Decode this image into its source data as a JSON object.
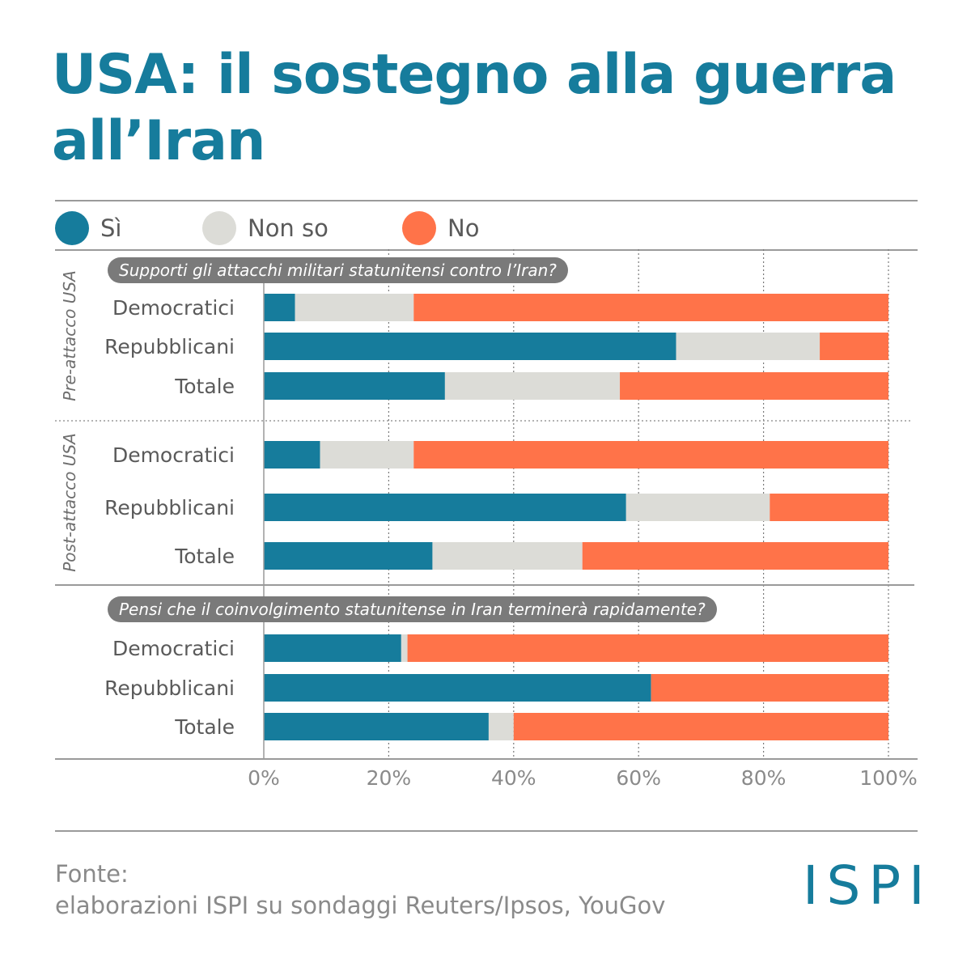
{
  "title": "USA: il sostegno alla guerra all’Iran",
  "legend": [
    {
      "label": "Sì",
      "color": "#167c9c"
    },
    {
      "label": "Non so",
      "color": "#dcdcd7"
    },
    {
      "label": "No",
      "color": "#ff7349"
    }
  ],
  "sections": {
    "pre": "Pre-attacco USA",
    "post": "Post-attacco USA"
  },
  "questions": {
    "q1": "Supporti gli attacchi militari statunitensi contro l’Iran?",
    "q2": "Pensi che il coinvolgimento statunitense in Iran terminerà  rapidamente?"
  },
  "source": {
    "title": "Fonte:",
    "text": "elaborazioni ISPI su sondaggi Reuters/Ipsos, YouGov"
  },
  "logo": "ISPI",
  "chart_data": {
    "type": "bar",
    "orientation": "horizontal",
    "stacked": true,
    "xlim": [
      0,
      100
    ],
    "xticks": [
      "0%",
      "20%",
      "40%",
      "60%",
      "80%",
      "100%"
    ],
    "grid": "vertical dotted",
    "legend_position": "top",
    "groups": [
      {
        "question": "Supporti gli attacchi militari statunitensi contro l’Iran?",
        "section": "Pre-attacco USA",
        "rows": [
          {
            "category": "Democratici",
            "values": [
              5,
              19,
              76
            ]
          },
          {
            "category": "Repubblicani",
            "values": [
              66,
              23,
              11
            ]
          },
          {
            "category": "Totale",
            "values": [
              29,
              28,
              43
            ]
          }
        ]
      },
      {
        "question": "Supporti gli attacchi militari statunitensi contro l’Iran?",
        "section": "Post-attacco USA",
        "rows": [
          {
            "category": "Democratici",
            "values": [
              9,
              15,
              76
            ]
          },
          {
            "category": "Repubblicani",
            "values": [
              58,
              23,
              19
            ]
          },
          {
            "category": "Totale",
            "values": [
              27,
              24,
              49
            ]
          }
        ]
      },
      {
        "question": "Pensi che il coinvolgimento statunitense in Iran terminerà  rapidamente?",
        "section": "",
        "rows": [
          {
            "category": "Democratici",
            "values": [
              22,
              1,
              77
            ]
          },
          {
            "category": "Repubblicani",
            "values": [
              62,
              0,
              38
            ]
          },
          {
            "category": "Totale",
            "values": [
              36,
              4,
              60
            ]
          }
        ]
      }
    ]
  }
}
